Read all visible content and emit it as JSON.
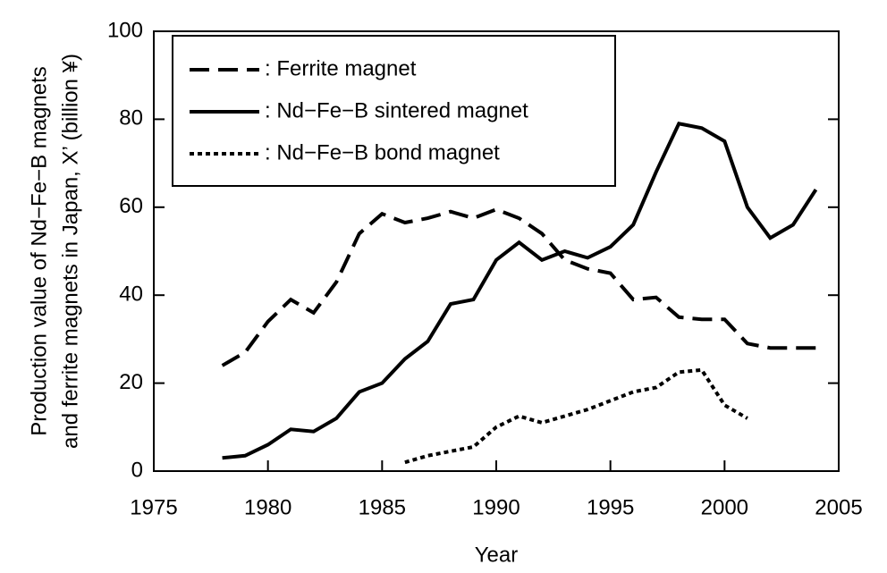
{
  "chart_data": {
    "type": "line",
    "xlabel": "Year",
    "ylabel": [
      "Production value of Nd−Fe−B magnets",
      "and ferrite magnets in Japan, X’ (billion ¥)"
    ],
    "x": [
      1978,
      1979,
      1980,
      1981,
      1982,
      1983,
      1984,
      1985,
      1986,
      1987,
      1988,
      1989,
      1990,
      1991,
      1992,
      1993,
      1994,
      1995,
      1996,
      1997,
      1998,
      1999,
      2000,
      2001,
      2002,
      2003,
      2004
    ],
    "series": [
      {
        "name": ": Ferrite magnet",
        "color": "#000000",
        "dash": "dashed",
        "values": [
          24,
          27,
          34,
          39,
          36,
          43,
          54,
          58.5,
          56.5,
          57.5,
          59,
          57.5,
          59.5,
          57.5,
          54,
          48,
          46,
          45,
          39,
          39.5,
          35,
          34.5,
          34.5,
          29,
          28,
          28,
          28
        ]
      },
      {
        "name": ": Nd−Fe−B sintered magnet",
        "color": "#000000",
        "dash": "solid",
        "values": [
          3,
          3.5,
          6,
          9.5,
          9,
          12,
          18,
          20,
          25.5,
          29.5,
          38,
          39,
          48,
          52,
          48,
          50,
          48.5,
          51,
          56,
          68,
          79,
          78,
          75,
          60,
          53,
          56,
          64
        ]
      },
      {
        "name": ": Nd−Fe−B bond magnet",
        "color": "#000000",
        "dash": "dotted",
        "values": [
          null,
          null,
          null,
          null,
          null,
          null,
          null,
          null,
          2,
          3.5,
          4.5,
          5.5,
          10,
          12.5,
          11,
          12.5,
          14,
          16,
          18,
          19,
          22.5,
          23,
          15,
          12,
          null,
          null,
          null
        ]
      }
    ],
    "xlim": [
      1975,
      2005
    ],
    "xticks": [
      1975,
      1980,
      1985,
      1990,
      1995,
      2000,
      2005
    ],
    "ylim": [
      0,
      100
    ],
    "yticks": [
      0,
      20,
      40,
      60,
      80,
      100
    ],
    "legend": "upper left"
  }
}
